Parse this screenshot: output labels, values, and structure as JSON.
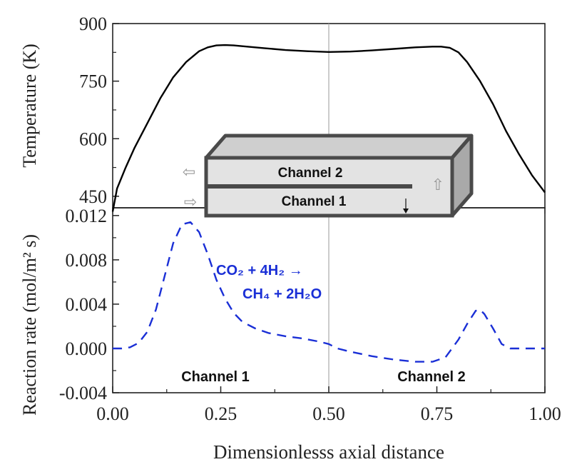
{
  "xlabel": "Dimensionlesss axial distance",
  "x_ticks": [
    "0.00",
    "0.25",
    "0.50",
    "0.75",
    "1.00"
  ],
  "chart_data": [
    {
      "type": "line",
      "panel": "top",
      "ylabel": "Temperature (K)",
      "y_ticks": [
        "450",
        "600",
        "750",
        "900"
      ],
      "ylim": [
        420,
        900
      ],
      "xlim": [
        0,
        1
      ],
      "grid": false,
      "series": [
        {
          "style": "solid",
          "color": "#000000",
          "x": [
            0.0,
            0.01,
            0.03,
            0.05,
            0.08,
            0.11,
            0.14,
            0.17,
            0.2,
            0.22,
            0.24,
            0.26,
            0.28,
            0.3,
            0.35,
            0.4,
            0.45,
            0.5,
            0.55,
            0.6,
            0.65,
            0.7,
            0.74,
            0.76,
            0.78,
            0.8,
            0.82,
            0.85,
            0.88,
            0.91,
            0.94,
            0.97,
            1.0
          ],
          "values": [
            410,
            470,
            525,
            575,
            640,
            705,
            760,
            800,
            828,
            838,
            843,
            844,
            843,
            841,
            836,
            831,
            828,
            826,
            827,
            830,
            834,
            838,
            840,
            840,
            837,
            825,
            800,
            750,
            690,
            620,
            560,
            505,
            460
          ]
        }
      ]
    },
    {
      "type": "line",
      "panel": "bottom",
      "ylabel": "Reaction rate (mol/m² s)",
      "y_ticks": [
        "-0.004",
        "0.000",
        "0.004",
        "0.008",
        "0.012"
      ],
      "ylim": [
        -0.004,
        0.0127
      ],
      "xlim": [
        0,
        1
      ],
      "grid": false,
      "series": [
        {
          "style": "dashed",
          "color": "#1a2fd6",
          "x": [
            0.0,
            0.02,
            0.04,
            0.06,
            0.08,
            0.1,
            0.12,
            0.14,
            0.16,
            0.18,
            0.2,
            0.22,
            0.24,
            0.26,
            0.28,
            0.3,
            0.33,
            0.36,
            0.4,
            0.44,
            0.48,
            0.5,
            0.52,
            0.55,
            0.6,
            0.65,
            0.7,
            0.74,
            0.77,
            0.8,
            0.82,
            0.84,
            0.85,
            0.86,
            0.88,
            0.9,
            0.92,
            0.95,
            1.0
          ],
          "values": [
            0.0,
            0.0,
            0.0001,
            0.0005,
            0.0015,
            0.0035,
            0.0065,
            0.0095,
            0.0112,
            0.0114,
            0.0105,
            0.0085,
            0.0062,
            0.0045,
            0.0032,
            0.0024,
            0.0018,
            0.0014,
            0.0011,
            0.0009,
            0.0006,
            0.0004,
            0.0,
            -0.0003,
            -0.0007,
            -0.001,
            -0.0012,
            -0.0012,
            -0.0008,
            0.0008,
            0.0022,
            0.0034,
            0.0035,
            0.0031,
            0.0018,
            0.0004,
            0.0,
            0.0,
            0.0
          ]
        }
      ]
    }
  ],
  "annotations": {
    "reaction_line1": "CO₂ + 4H₂ →",
    "reaction_line2": "CH₄ + 2H₂O",
    "bottom_channel1": "Channel 1",
    "bottom_channel2": "Channel 2"
  },
  "inset": {
    "channel2_label": "Channel 2",
    "channel1_label": "Channel 1",
    "arrow_out": "⇦",
    "arrow_in": "⇨",
    "arrow_up": "⇧"
  }
}
